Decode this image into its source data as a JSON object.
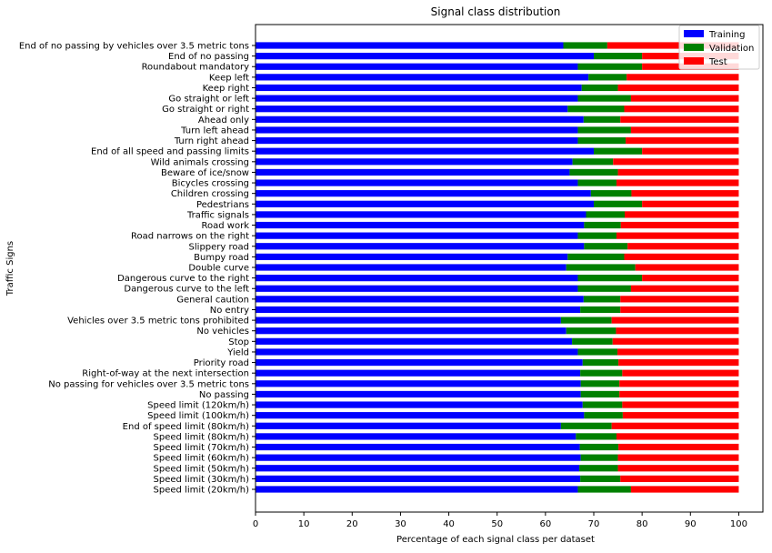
{
  "chart_data": {
    "type": "bar",
    "orientation": "horizontal",
    "stacked": true,
    "title": "Signal class distribution",
    "xlabel": "Percentage of each signal class per dataset",
    "ylabel": "Traffic Signs",
    "xlim": [
      0,
      105
    ],
    "xticks": [
      0,
      10,
      20,
      30,
      40,
      50,
      60,
      70,
      80,
      90,
      100
    ],
    "grid": false,
    "legend_position": "top-right",
    "categories": [
      "Speed limit (20km/h)",
      "Speed limit (30km/h)",
      "Speed limit (50km/h)",
      "Speed limit (60km/h)",
      "Speed limit (70km/h)",
      "Speed limit (80km/h)",
      "End of speed limit (80km/h)",
      "Speed limit (100km/h)",
      "Speed limit (120km/h)",
      "No passing",
      "No passing for vehicles over 3.5 metric tons",
      "Right-of-way at the next intersection",
      "Priority road",
      "Yield",
      "Stop",
      "No vehicles",
      "Vehicles over 3.5 metric tons prohibited",
      "No entry",
      "General caution",
      "Dangerous curve to the left",
      "Dangerous curve to the right",
      "Double curve",
      "Bumpy road",
      "Slippery road",
      "Road narrows on the right",
      "Road work",
      "Traffic signals",
      "Pedestrians",
      "Children crossing",
      "Bicycles crossing",
      "Beware of ice/snow",
      "Wild animals crossing",
      "End of all speed and passing limits",
      "Turn right ahead",
      "Turn left ahead",
      "Ahead only",
      "Go straight or right",
      "Go straight or left",
      "Keep right",
      "Keep left",
      "Roundabout mandatory",
      "End of no passing",
      "End of no passing by vehicles over 3.5 metric tons"
    ],
    "series": [
      {
        "name": "Training",
        "color": "#0000ff",
        "values": [
          66.7,
          67.2,
          67.0,
          67.3,
          67.1,
          66.3,
          63.2,
          68.0,
          67.7,
          67.3,
          67.3,
          67.2,
          67.7,
          66.7,
          65.5,
          64.3,
          63.2,
          67.2,
          67.9,
          66.7,
          66.7,
          64.3,
          64.6,
          68.0,
          66.7,
          68.0,
          68.4,
          70.0,
          69.4,
          66.7,
          65.0,
          65.6,
          70.0,
          66.7,
          66.7,
          67.9,
          64.6,
          66.7,
          67.5,
          68.9,
          66.7,
          70.0,
          63.7
        ]
      },
      {
        "name": "Validation",
        "color": "#008000",
        "values": [
          11.0,
          8.3,
          8.0,
          7.7,
          8.0,
          8.4,
          10.5,
          8.0,
          8.2,
          8.0,
          8.0,
          8.7,
          7.4,
          8.2,
          8.4,
          10.3,
          10.5,
          8.3,
          7.6,
          11.0,
          13.3,
          14.3,
          11.7,
          9.0,
          8.0,
          7.6,
          8.0,
          10.0,
          8.4,
          8.0,
          10.0,
          8.4,
          10.0,
          9.9,
          11.0,
          7.6,
          11.7,
          11.0,
          7.5,
          7.9,
          13.3,
          10.0,
          9.1
        ]
      },
      {
        "name": "Test",
        "color": "#ff0000",
        "values": [
          22.3,
          24.5,
          25.0,
          25.0,
          24.9,
          25.3,
          26.3,
          24.0,
          24.1,
          24.7,
          24.7,
          24.1,
          24.9,
          25.1,
          26.1,
          25.4,
          26.3,
          24.5,
          24.5,
          22.3,
          20.0,
          21.4,
          23.7,
          23.0,
          25.3,
          24.4,
          23.6,
          20.0,
          22.2,
          25.3,
          25.0,
          26.0,
          20.0,
          23.4,
          22.3,
          24.5,
          23.7,
          22.3,
          25.0,
          23.2,
          20.0,
          20.0,
          27.2
        ]
      }
    ]
  }
}
